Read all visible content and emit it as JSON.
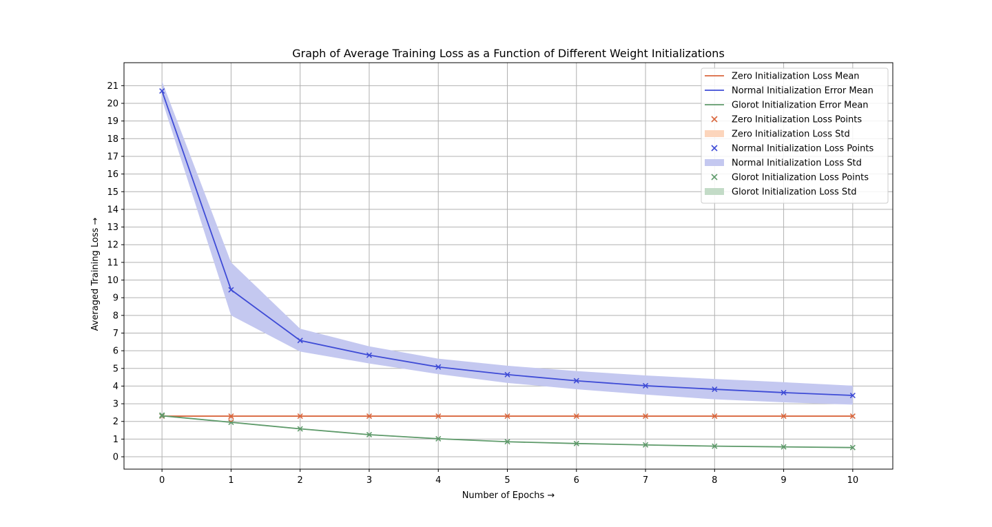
{
  "chart_data": {
    "type": "line",
    "title": "Graph of Average Training Loss as a Function of Different Weight Initializations",
    "xlabel": "Number of Epochs →",
    "ylabel": "Averaged Training Loss →",
    "x": [
      0,
      1,
      2,
      3,
      4,
      5,
      6,
      7,
      8,
      9,
      10
    ],
    "xlim": [
      -0.55,
      10.58
    ],
    "ylim": [
      -0.7,
      22.3
    ],
    "xticks": [
      "0",
      "1",
      "2",
      "3",
      "4",
      "5",
      "6",
      "7",
      "8",
      "9",
      "10"
    ],
    "yticks": [
      "0",
      "1",
      "2",
      "3",
      "4",
      "5",
      "6",
      "7",
      "8",
      "9",
      "10",
      "11",
      "12",
      "13",
      "14",
      "15",
      "16",
      "17",
      "18",
      "19",
      "20",
      "21"
    ],
    "grid": true,
    "legend_position": "top-right",
    "series": [
      {
        "key": "zero",
        "line_name": "Zero Initialization Loss Mean",
        "points_name": "Zero Initialization Loss Points",
        "std_name": "Zero Initialization Loss Std",
        "color": "#d9663d",
        "band_color": "#fcd5bc",
        "mean": [
          2.3,
          2.3,
          2.3,
          2.3,
          2.3,
          2.3,
          2.3,
          2.3,
          2.3,
          2.3,
          2.3
        ],
        "lower": [
          2.3,
          2.3,
          2.3,
          2.3,
          2.3,
          2.3,
          2.3,
          2.3,
          2.3,
          2.3,
          2.3
        ],
        "upper": [
          2.3,
          2.3,
          2.3,
          2.3,
          2.3,
          2.3,
          2.3,
          2.3,
          2.3,
          2.3,
          2.3
        ]
      },
      {
        "key": "normal",
        "line_name": "Normal Initialization Error Mean",
        "points_name": "Normal Initialization Loss Points",
        "std_name": "Normal Initialization Loss Std",
        "color": "#3e4bd6",
        "band_color": "#c4c8f0",
        "mean": [
          20.7,
          9.45,
          6.58,
          5.75,
          5.08,
          4.65,
          4.3,
          4.02,
          3.82,
          3.63,
          3.47
        ],
        "lower": [
          20.2,
          8.0,
          5.95,
          5.28,
          4.68,
          4.18,
          3.82,
          3.52,
          3.25,
          3.08,
          2.95
        ],
        "upper": [
          21.25,
          11.0,
          7.25,
          6.25,
          5.55,
          5.15,
          4.85,
          4.6,
          4.4,
          4.22,
          4.02
        ]
      },
      {
        "key": "glorot",
        "line_name": "Glorot Initialization Error Mean",
        "points_name": "Glorot Initialization Loss Points",
        "std_name": "Glorot Initialization Loss Std",
        "color": "#5e9a6a",
        "band_color": "#c3dbc7",
        "mean": [
          2.32,
          1.95,
          1.58,
          1.25,
          1.02,
          0.85,
          0.75,
          0.67,
          0.6,
          0.56,
          0.52
        ],
        "lower": [
          2.28,
          1.92,
          1.55,
          1.22,
          0.99,
          0.83,
          0.73,
          0.65,
          0.58,
          0.54,
          0.5
        ],
        "upper": [
          2.36,
          1.98,
          1.61,
          1.28,
          1.05,
          0.87,
          0.77,
          0.69,
          0.62,
          0.58,
          0.54
        ]
      }
    ],
    "extra_points": [
      {
        "series": "glorot",
        "x": 0,
        "y": 2.36
      },
      {
        "series": "zero",
        "x": 1,
        "y": 2.12,
        "marker": "circle"
      }
    ],
    "legend": [
      {
        "label": "Zero Initialization Loss Mean",
        "kind": "line",
        "series": "zero"
      },
      {
        "label": "Normal Initialization Error Mean",
        "kind": "line",
        "series": "normal"
      },
      {
        "label": "Glorot Initialization Error Mean",
        "kind": "line",
        "series": "glorot"
      },
      {
        "label": "Zero Initialization Loss Points",
        "kind": "marker",
        "series": "zero"
      },
      {
        "label": "Zero Initialization Loss Std",
        "kind": "band",
        "series": "zero"
      },
      {
        "label": "Normal Initialization Loss Points",
        "kind": "marker",
        "series": "normal"
      },
      {
        "label": "Normal Initialization Loss Std",
        "kind": "band",
        "series": "normal"
      },
      {
        "label": "Glorot Initialization Loss Points",
        "kind": "marker",
        "series": "glorot"
      },
      {
        "label": "Glorot Initialization Loss Std",
        "kind": "band",
        "series": "glorot"
      }
    ]
  }
}
